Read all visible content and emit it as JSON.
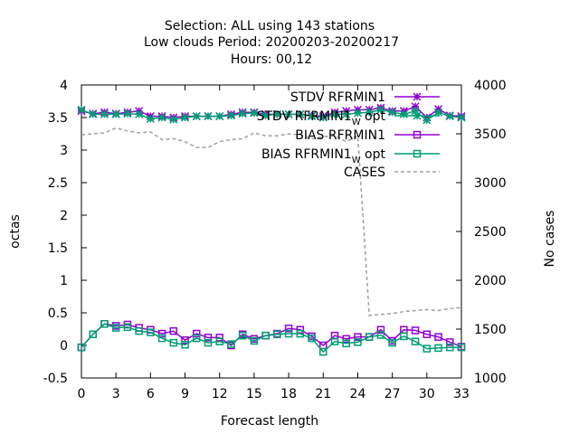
{
  "chart_data": {
    "type": "line",
    "title_lines": [
      "Selection: ALL using   143 stations",
      "Low clouds   Period: 20200203-20200217",
      "Hours:  00,12"
    ],
    "xlabel": "Forecast length",
    "ylabel": "octas",
    "y2label": "No cases",
    "xlim": [
      0,
      33
    ],
    "ylim": [
      -0.5,
      4
    ],
    "y2lim": [
      1000,
      4000
    ],
    "x_ticks": [
      "0",
      "3",
      "6",
      "9",
      "12",
      "15",
      "18",
      "21",
      "24",
      "27",
      "30",
      "33"
    ],
    "y_ticks": [
      "-0.5",
      "0",
      "0.5",
      "1",
      "1.5",
      "2",
      "2.5",
      "3",
      "3.5",
      "4"
    ],
    "y2_ticks": [
      "1000",
      "1500",
      "2000",
      "2500",
      "3000",
      "3500",
      "4000"
    ],
    "grid": false,
    "legend_position": "top-right",
    "x": [
      0,
      1,
      2,
      3,
      4,
      5,
      6,
      7,
      8,
      9,
      10,
      11,
      12,
      13,
      14,
      15,
      16,
      17,
      18,
      19,
      20,
      21,
      22,
      23,
      24,
      25,
      26,
      27,
      28,
      29,
      30,
      31,
      32,
      33
    ],
    "series": [
      {
        "name": "STDV RFRMIN1",
        "legend_main": "STDV RFRMIN1",
        "legend_sub": "",
        "color": "#9400d3",
        "marker": "star",
        "dash": false,
        "axis": "y",
        "values": [
          3.6,
          3.56,
          3.58,
          3.56,
          3.58,
          3.6,
          3.52,
          3.52,
          3.5,
          3.52,
          3.52,
          3.52,
          3.52,
          3.55,
          3.58,
          3.58,
          3.55,
          3.55,
          3.55,
          3.55,
          3.53,
          3.52,
          3.58,
          3.6,
          3.62,
          3.62,
          3.65,
          3.6,
          3.6,
          3.67,
          3.5,
          3.63,
          3.53,
          3.52
        ]
      },
      {
        "name": "STDV RFRMIN1_W opt",
        "legend_main": "STDV RFRMIN1",
        "legend_sub": "W",
        "legend_suffix": " opt",
        "color": "#009e73",
        "marker": "star",
        "dash": false,
        "axis": "y",
        "values": [
          3.62,
          3.55,
          3.55,
          3.55,
          3.56,
          3.55,
          3.48,
          3.5,
          3.47,
          3.5,
          3.52,
          3.52,
          3.52,
          3.53,
          3.56,
          3.57,
          3.53,
          3.55,
          3.55,
          3.55,
          3.52,
          3.5,
          3.55,
          3.55,
          3.57,
          3.58,
          3.62,
          3.58,
          3.55,
          3.6,
          3.46,
          3.58,
          3.52,
          3.5
        ]
      },
      {
        "name": "BIAS RFRMIN1",
        "legend_main": "BIAS RFRMIN1",
        "legend_sub": "",
        "color": "#9400d3",
        "marker": "square",
        "dash": false,
        "axis": "y",
        "values": [
          -0.03,
          0.17,
          0.33,
          0.3,
          0.32,
          0.27,
          0.24,
          0.18,
          0.22,
          0.08,
          0.18,
          0.12,
          0.12,
          0.0,
          0.17,
          0.1,
          0.15,
          0.18,
          0.26,
          0.24,
          0.14,
          0.0,
          0.15,
          0.1,
          0.13,
          0.13,
          0.24,
          0.07,
          0.24,
          0.23,
          0.17,
          0.13,
          0.05,
          -0.02
        ]
      },
      {
        "name": "BIAS RFRMIN1_W opt",
        "legend_main": "BIAS RFRMIN1",
        "legend_sub": "W",
        "legend_suffix": " opt",
        "color": "#009e73",
        "marker": "square",
        "dash": false,
        "axis": "y",
        "values": [
          -0.03,
          0.17,
          0.33,
          0.27,
          0.28,
          0.22,
          0.2,
          0.11,
          0.04,
          0.01,
          0.11,
          0.04,
          0.06,
          0.02,
          0.15,
          0.07,
          0.15,
          0.17,
          0.18,
          0.18,
          0.11,
          -0.1,
          0.06,
          0.03,
          0.05,
          0.13,
          0.16,
          0.04,
          0.14,
          0.06,
          -0.05,
          -0.04,
          -0.03,
          -0.03
        ]
      },
      {
        "name": "CASES",
        "legend_main": "CASES",
        "legend_sub": "",
        "color": "#a0a0a0",
        "marker": "none",
        "dash": true,
        "axis": "y2",
        "values": [
          3490,
          3500,
          3510,
          3560,
          3530,
          3510,
          3520,
          3440,
          3450,
          3420,
          3360,
          3360,
          3420,
          3440,
          3450,
          3510,
          3480,
          3480,
          3500,
          3490,
          3450,
          3470,
          3480,
          3420,
          3480,
          1640,
          1650,
          1660,
          1680,
          1690,
          1700,
          1690,
          1710,
          1720
        ]
      }
    ]
  }
}
